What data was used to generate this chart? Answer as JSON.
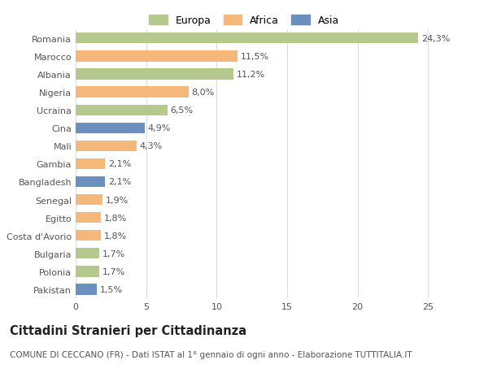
{
  "categories": [
    "Romania",
    "Marocco",
    "Albania",
    "Nigeria",
    "Ucraina",
    "Cina",
    "Mali",
    "Gambia",
    "Bangladesh",
    "Senegal",
    "Egitto",
    "Costa d'Avorio",
    "Bulgaria",
    "Polonia",
    "Pakistan"
  ],
  "values": [
    24.3,
    11.5,
    11.2,
    8.0,
    6.5,
    4.9,
    4.3,
    2.1,
    2.1,
    1.9,
    1.8,
    1.8,
    1.7,
    1.7,
    1.5
  ],
  "continents": [
    "Europa",
    "Africa",
    "Europa",
    "Africa",
    "Europa",
    "Asia",
    "Africa",
    "Africa",
    "Asia",
    "Africa",
    "Africa",
    "Africa",
    "Europa",
    "Europa",
    "Asia"
  ],
  "colors": {
    "Europa": "#b5c98e",
    "Africa": "#f5b87a",
    "Asia": "#6b8fbf"
  },
  "title": "Cittadini Stranieri per Cittadinanza",
  "subtitle": "COMUNE DI CECCANO (FR) - Dati ISTAT al 1° gennaio di ogni anno - Elaborazione TUTTITALIA.IT",
  "xlim": [
    0,
    27
  ],
  "xticks": [
    0,
    5,
    10,
    15,
    20,
    25
  ],
  "background_color": "#ffffff",
  "grid_color": "#dddddd",
  "bar_height": 0.6,
  "label_fontsize": 8,
  "tick_fontsize": 8,
  "title_fontsize": 10.5,
  "subtitle_fontsize": 7.5,
  "legend_fontsize": 9
}
